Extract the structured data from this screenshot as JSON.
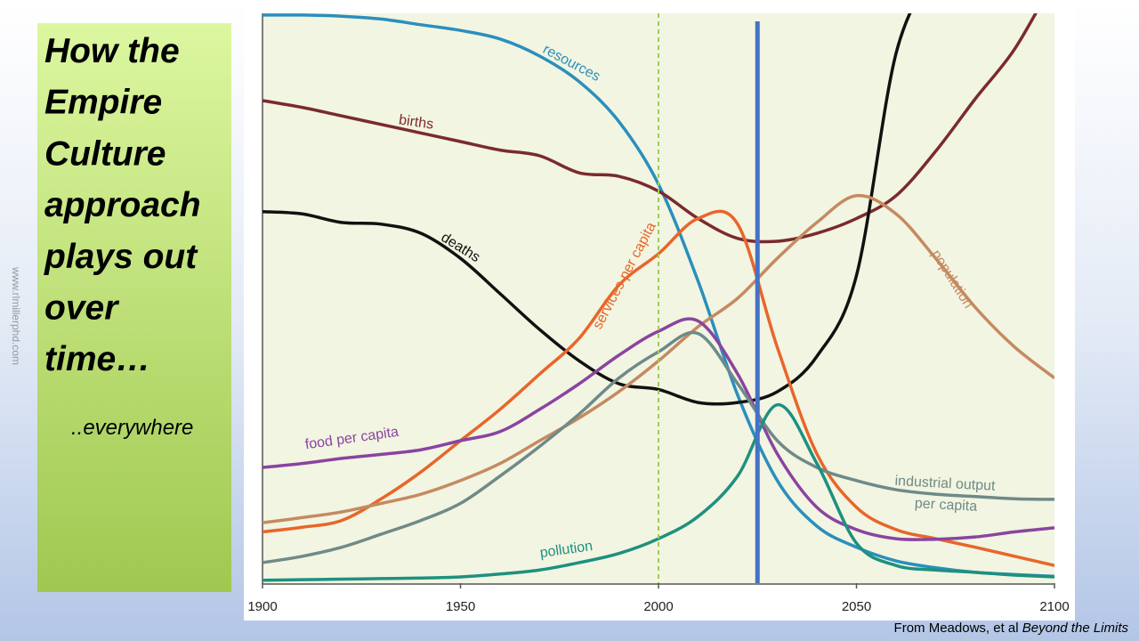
{
  "slide": {
    "title_lines": [
      "How the",
      "Empire",
      "Culture",
      "approach",
      "plays out",
      "over",
      "time…"
    ],
    "subtitle": "..everywhere",
    "side_text": "www.rlmillerphd.com",
    "credit": "From Meadows, et al",
    "credit_source": "Beyond the Limits"
  },
  "chart_data": {
    "type": "line",
    "x": [
      1900,
      1910,
      1920,
      1930,
      1940,
      1950,
      1960,
      1970,
      1980,
      1990,
      2000,
      2010,
      2020,
      2030,
      2040,
      2050,
      2060,
      2070,
      2080,
      2090,
      2100
    ],
    "xlim": [
      1900,
      2100
    ],
    "xticks": [
      1900,
      1950,
      2000,
      2050,
      2100
    ],
    "ylim": [
      0,
      100
    ],
    "vlines": [
      {
        "x": 2000,
        "color": "#9ccc5a",
        "dashed": true
      },
      {
        "x": 2025,
        "color": "#4472c4",
        "dashed": false
      }
    ],
    "series": [
      {
        "name": "resources",
        "color": "#2a8fbd",
        "values": [
          99.7,
          99.7,
          99.5,
          99,
          98,
          97,
          95.5,
          92.5,
          88,
          81,
          70,
          53,
          33,
          18,
          10,
          6.3,
          3.9,
          2.7,
          1.9,
          1.5,
          1.2
        ]
      },
      {
        "name": "births",
        "color": "#7a2a2e",
        "values": [
          84.7,
          83.5,
          82,
          80.5,
          79,
          77.5,
          76,
          75,
          72,
          71.4,
          68.8,
          64,
          60.5,
          60,
          61.4,
          64,
          68,
          75.8,
          85,
          93.8,
          106
        ]
      },
      {
        "name": "deaths",
        "color": "#111111",
        "values": [
          65.2,
          64.8,
          63.3,
          63,
          61.4,
          57,
          50.8,
          44.5,
          39,
          35,
          34,
          31.7,
          31.7,
          33.6,
          39.8,
          54,
          93,
          108,
          null,
          null,
          null
        ]
      },
      {
        "name": "services per capita",
        "color": "#e8662a",
        "values": [
          9,
          9.8,
          11,
          14.8,
          19.5,
          25,
          30.5,
          36.7,
          43,
          52.3,
          57.8,
          64,
          63,
          41.4,
          22.7,
          13.3,
          9.4,
          7.8,
          6.3,
          4.7,
          3.1
        ]
      },
      {
        "name": "population",
        "color": "#c58a62",
        "values": [
          10.6,
          11.5,
          12.5,
          14,
          15.6,
          18,
          21,
          25,
          29,
          33.6,
          39,
          45,
          50,
          57,
          63.3,
          68,
          64.8,
          57,
          48.4,
          41.4,
          36
        ]
      },
      {
        "name": "food per capita",
        "color": "#8a44a0",
        "values": [
          20.3,
          21,
          21.9,
          22.6,
          23.4,
          25,
          26.6,
          30.5,
          35,
          40,
          44.2,
          46,
          36.7,
          22.7,
          13.3,
          9.4,
          7.8,
          7.7,
          8.1,
          9,
          9.7
        ]
      },
      {
        "name": "industrial output per capita",
        "color": "#6f8a88",
        "values": [
          3.6,
          4.7,
          6.3,
          8.6,
          11,
          14,
          18.8,
          24,
          29.7,
          36,
          40.6,
          43.8,
          35,
          25,
          20.3,
          18,
          16.4,
          15.6,
          15.2,
          14.8,
          14.7
        ]
      },
      {
        "name": "pollution",
        "color": "#1e9080",
        "values": [
          0.5,
          0.6,
          0.7,
          0.8,
          0.9,
          1.1,
          1.6,
          2.3,
          3.6,
          5.2,
          7.8,
          11.7,
          18.8,
          31.3,
          21,
          7,
          3.1,
          2.3,
          1.9,
          1.4,
          1.1
        ]
      }
    ]
  }
}
